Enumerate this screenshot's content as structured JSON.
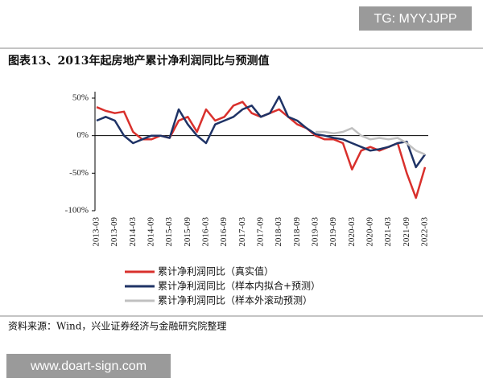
{
  "banner": "TG: MYYJJPP",
  "source": "资料来源：Wind，兴业证券经济与金融研究院整理",
  "watermark": "www.doart-sign.com",
  "chart_data": {
    "type": "line",
    "title": "图表13、2013年起房地产累计净利润同比与预测值",
    "categories": [
      "2013-03",
      null,
      "2013-09",
      null,
      "2014-03",
      null,
      "2014-09",
      null,
      "2015-03",
      null,
      "2015-09",
      null,
      "2016-03",
      null,
      "2016-09",
      null,
      "2017-03",
      null,
      "2017-09",
      null,
      "2018-03",
      null,
      "2018-09",
      null,
      "2019-03",
      null,
      "2019-09",
      null,
      "2020-03",
      null,
      "2020-09",
      null,
      "2021-03",
      null,
      "2021-09",
      null,
      "2022-03"
    ],
    "ylim": [
      -100,
      50
    ],
    "yticks": [
      {
        "value": 50,
        "label": "50%"
      },
      {
        "value": 0,
        "label": "0%"
      },
      {
        "value": -50,
        "label": "-50%"
      },
      {
        "value": -100,
        "label": "-100%"
      }
    ],
    "series": [
      {
        "name": "累计净利润同比（真实值）",
        "color": "#d9302c",
        "values": [
          38,
          33,
          30,
          32,
          5,
          -5,
          -5,
          0,
          -3,
          20,
          25,
          5,
          35,
          20,
          25,
          40,
          45,
          30,
          25,
          30,
          35,
          25,
          15,
          10,
          0,
          -5,
          -5,
          -10,
          -45,
          -20,
          -15,
          -20,
          -15,
          -10,
          -50,
          -83,
          -42
        ]
      },
      {
        "name": "累计净利润同比（样本内拟合+预测）",
        "color": "#1f3366",
        "values": [
          20,
          25,
          20,
          0,
          -10,
          -5,
          0,
          0,
          -3,
          35,
          15,
          0,
          -10,
          15,
          20,
          25,
          35,
          40,
          25,
          30,
          52,
          25,
          20,
          10,
          2,
          0,
          -3,
          -5,
          -10,
          -15,
          -20,
          -18,
          -15,
          -10,
          -8,
          -42,
          -25
        ]
      },
      {
        "name": "累计净利润同比（样本外滚动预测）",
        "color": "#c0c0c0",
        "values": [
          null,
          null,
          null,
          null,
          null,
          null,
          null,
          null,
          null,
          null,
          null,
          null,
          null,
          null,
          null,
          null,
          null,
          null,
          null,
          null,
          null,
          null,
          null,
          null,
          5,
          5,
          3,
          5,
          10,
          0,
          -5,
          -3,
          -5,
          -3,
          -10,
          -20,
          -25
        ]
      }
    ]
  }
}
